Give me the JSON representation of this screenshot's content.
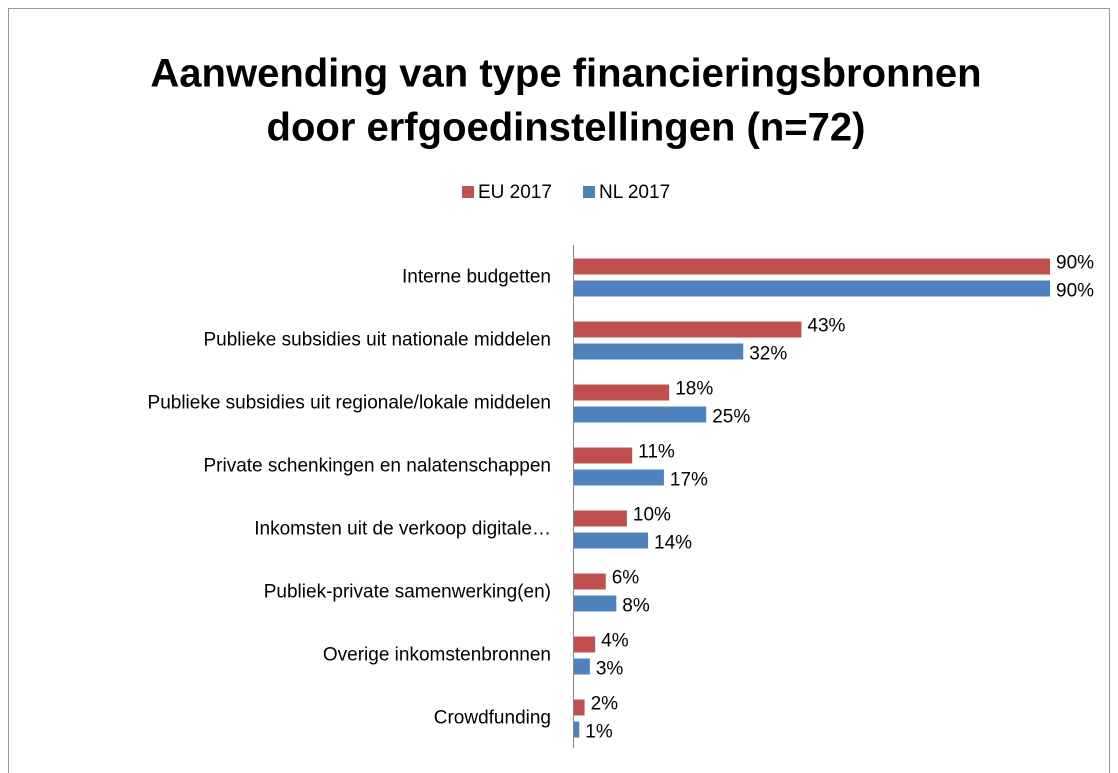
{
  "chart_data": {
    "type": "barh",
    "title": [
      "Aanwending van type financieringsbronnen",
      "door erfgoedinstellingen (n=72)"
    ],
    "categories": [
      "Interne budgetten",
      "Publieke subsidies uit nationale middelen",
      "Publieke subsidies uit regionale/lokale middelen",
      "Private schenkingen en nalatenschappen",
      "Inkomsten uit de verkoop digitale…",
      "Publiek-private samenwerking(en)",
      "Overige inkomstenbronnen",
      "Crowdfunding"
    ],
    "series": [
      {
        "name": "EU 2017",
        "color": "#c0504d",
        "values": [
          90,
          43,
          18,
          11,
          10,
          6,
          4,
          2
        ],
        "value_labels": [
          "90%",
          "43%",
          "18%",
          "11%",
          "10%",
          "6%",
          "4%",
          "2%"
        ]
      },
      {
        "name": "NL 2017",
        "color": "#4f81bd",
        "values": [
          90,
          32,
          25,
          17,
          14,
          8,
          3,
          1
        ],
        "value_labels": [
          "90%",
          "32%",
          "25%",
          "17%",
          "14%",
          "8%",
          "3%",
          "1%"
        ]
      }
    ],
    "xlim": [
      0,
      90
    ],
    "legend": "top"
  }
}
